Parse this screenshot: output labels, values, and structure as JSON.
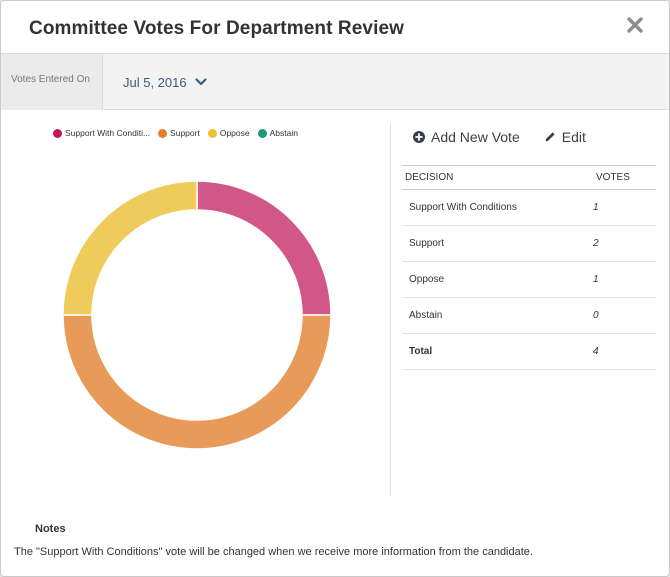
{
  "header": {
    "title": "Committee Votes For Department Review"
  },
  "date_bar": {
    "label": "Votes Entered On",
    "selected_date": "Jul 5, 2016"
  },
  "legend": [
    {
      "label": "Support With Conditi...",
      "color": "#c2185b"
    },
    {
      "label": "Support",
      "color": "#e87d2c"
    },
    {
      "label": "Oppose",
      "color": "#f2c12e"
    },
    {
      "label": "Abstain",
      "color": "#1a9a78"
    }
  ],
  "chart_data": {
    "type": "pie",
    "title": "",
    "categories": [
      "Support With Conditions",
      "Support",
      "Oppose",
      "Abstain"
    ],
    "values": [
      1,
      2,
      1,
      0
    ],
    "colors": [
      "#d15786",
      "#e89b58",
      "#eecb5a",
      "#1a9a78"
    ],
    "style": "donut",
    "legend_position": "top"
  },
  "actions": {
    "add_vote": "Add New Vote",
    "edit": "Edit"
  },
  "table": {
    "headers": {
      "decision": "DECISION",
      "votes": "VOTES"
    },
    "rows": [
      {
        "decision": "Support With Conditions",
        "votes": "1"
      },
      {
        "decision": "Support",
        "votes": "2"
      },
      {
        "decision": "Oppose",
        "votes": "1"
      },
      {
        "decision": "Abstain",
        "votes": "0"
      }
    ],
    "total": {
      "label": "Total",
      "votes": "4"
    }
  },
  "notes": {
    "heading": "Notes",
    "text": "The \"Support With Conditions\" vote will be changed when we receive more information from the candidate."
  }
}
